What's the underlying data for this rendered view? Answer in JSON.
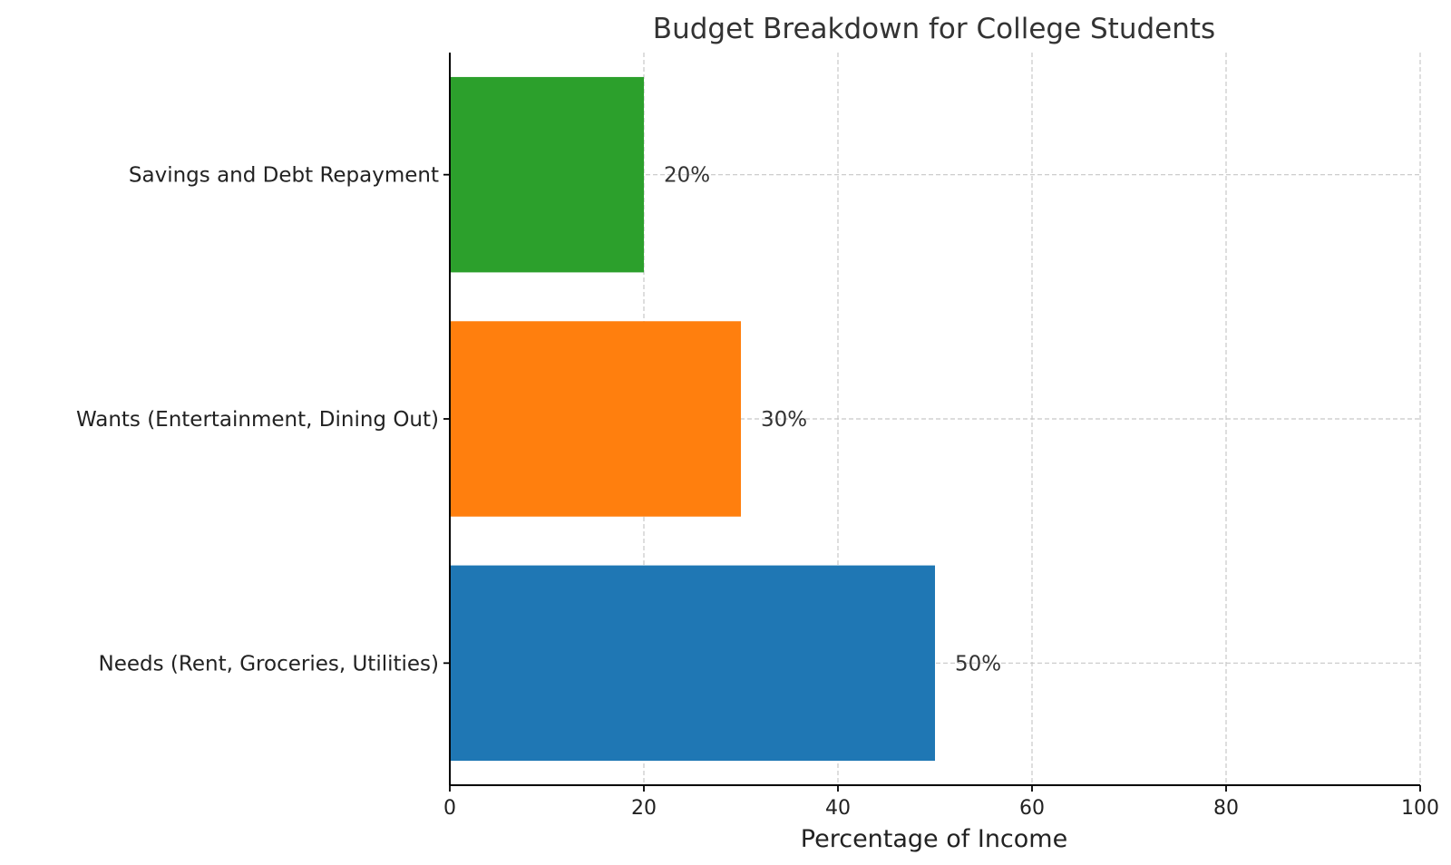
{
  "chart_data": {
    "type": "bar",
    "orientation": "horizontal",
    "title": "Budget Breakdown for College Students",
    "xlabel": "Percentage of Income",
    "ylabel": "",
    "xlim": [
      0,
      100
    ],
    "x_ticks": [
      "0",
      "20",
      "40",
      "60",
      "80",
      "100"
    ],
    "categories": [
      "Needs (Rent, Groceries, Utilities)",
      "Wants (Entertainment, Dining Out)",
      "Savings and Debt Repayment"
    ],
    "values": [
      50,
      30,
      20
    ],
    "value_labels": [
      "50%",
      "30%",
      "20%"
    ],
    "colors": [
      "#1f77b4",
      "#ff7f0e",
      "#2ca02c"
    ],
    "grid": true
  }
}
